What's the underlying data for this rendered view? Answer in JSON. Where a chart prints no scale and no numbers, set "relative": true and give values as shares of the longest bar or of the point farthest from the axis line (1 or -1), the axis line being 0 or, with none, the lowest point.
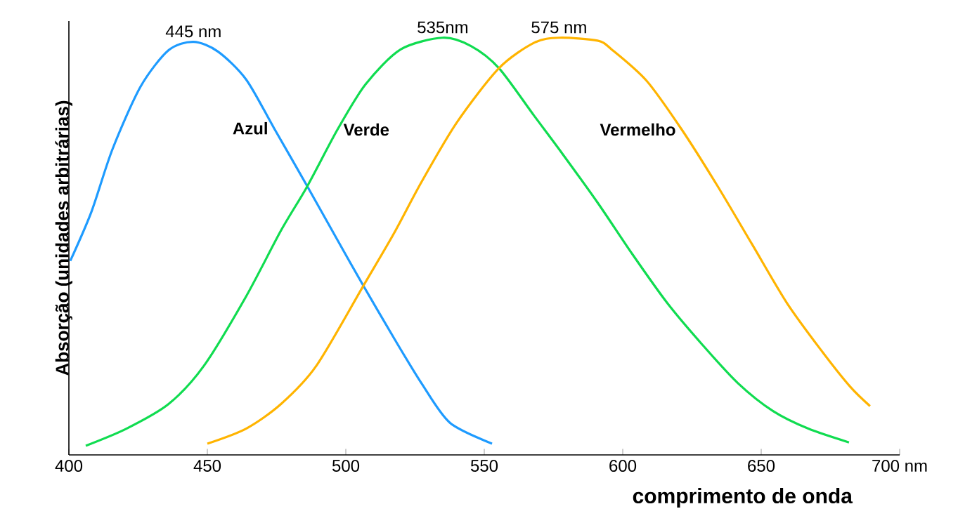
{
  "chart_data": {
    "type": "line",
    "relative": true,
    "xlabel": "comprimento de onda",
    "ylabel": "Absorção (unidades arbitrárias)",
    "xlim": [
      400,
      700
    ],
    "xticks": [
      400,
      450,
      500,
      550,
      600,
      650,
      {
        "value": 700,
        "label": "700 nm"
      }
    ],
    "grid": false,
    "marker": "none",
    "line_style": "solid",
    "annotations": [
      "445 nm",
      "535nm",
      "575 nm"
    ],
    "series": [
      {
        "name": "Azul",
        "color": "#1e9bff",
        "x": [
          400.5,
          408.1,
          415.7,
          425.9,
          436.0,
          445,
          453.8,
          464.0,
          474.1,
          486.0,
          497.0,
          506.3,
          517.3,
          527.4,
          537.6,
          552.8
        ],
        "values": [
          0.465,
          0.582,
          0.732,
          0.883,
          0.97,
          0.99,
          0.967,
          0.9,
          0.783,
          0.645,
          0.515,
          0.406,
          0.281,
          0.171,
          0.077,
          0.027
        ]
      },
      {
        "name": "Verde",
        "color": "#10dc50",
        "x": [
          406.1,
          420.8,
          436.0,
          448.7,
          464.0,
          476.6,
          486.0,
          497.0,
          507.1,
          519.8,
          535,
          545.2,
          555.3,
          568.0,
          578.2,
          590.9,
          603.6,
          616.2,
          628.9,
          641.6,
          654.3,
          667.0,
          681.7
        ],
        "values": [
          0.022,
          0.063,
          0.122,
          0.213,
          0.38,
          0.538,
          0.643,
          0.78,
          0.888,
          0.972,
          1.0,
          0.98,
          0.927,
          0.813,
          0.722,
          0.605,
          0.48,
          0.363,
          0.263,
          0.172,
          0.105,
          0.063,
          0.03
        ]
      },
      {
        "name": "Vermelho",
        "color": "#ffb400",
        "x": [
          450,
          464,
          476.6,
          489.3,
          506.3,
          517.3,
          527.4,
          540.1,
          555.3,
          568.0,
          577,
          590.9,
          596,
          608.6,
          621.3,
          634.0,
          646.7,
          659.4,
          672.1,
          682.2,
          689.3
        ],
        "values": [
          0.027,
          0.063,
          0.122,
          0.213,
          0.405,
          0.53,
          0.655,
          0.797,
          0.927,
          0.988,
          1.0,
          0.993,
          0.972,
          0.897,
          0.78,
          0.647,
          0.505,
          0.363,
          0.247,
          0.163,
          0.117
        ]
      }
    ]
  }
}
